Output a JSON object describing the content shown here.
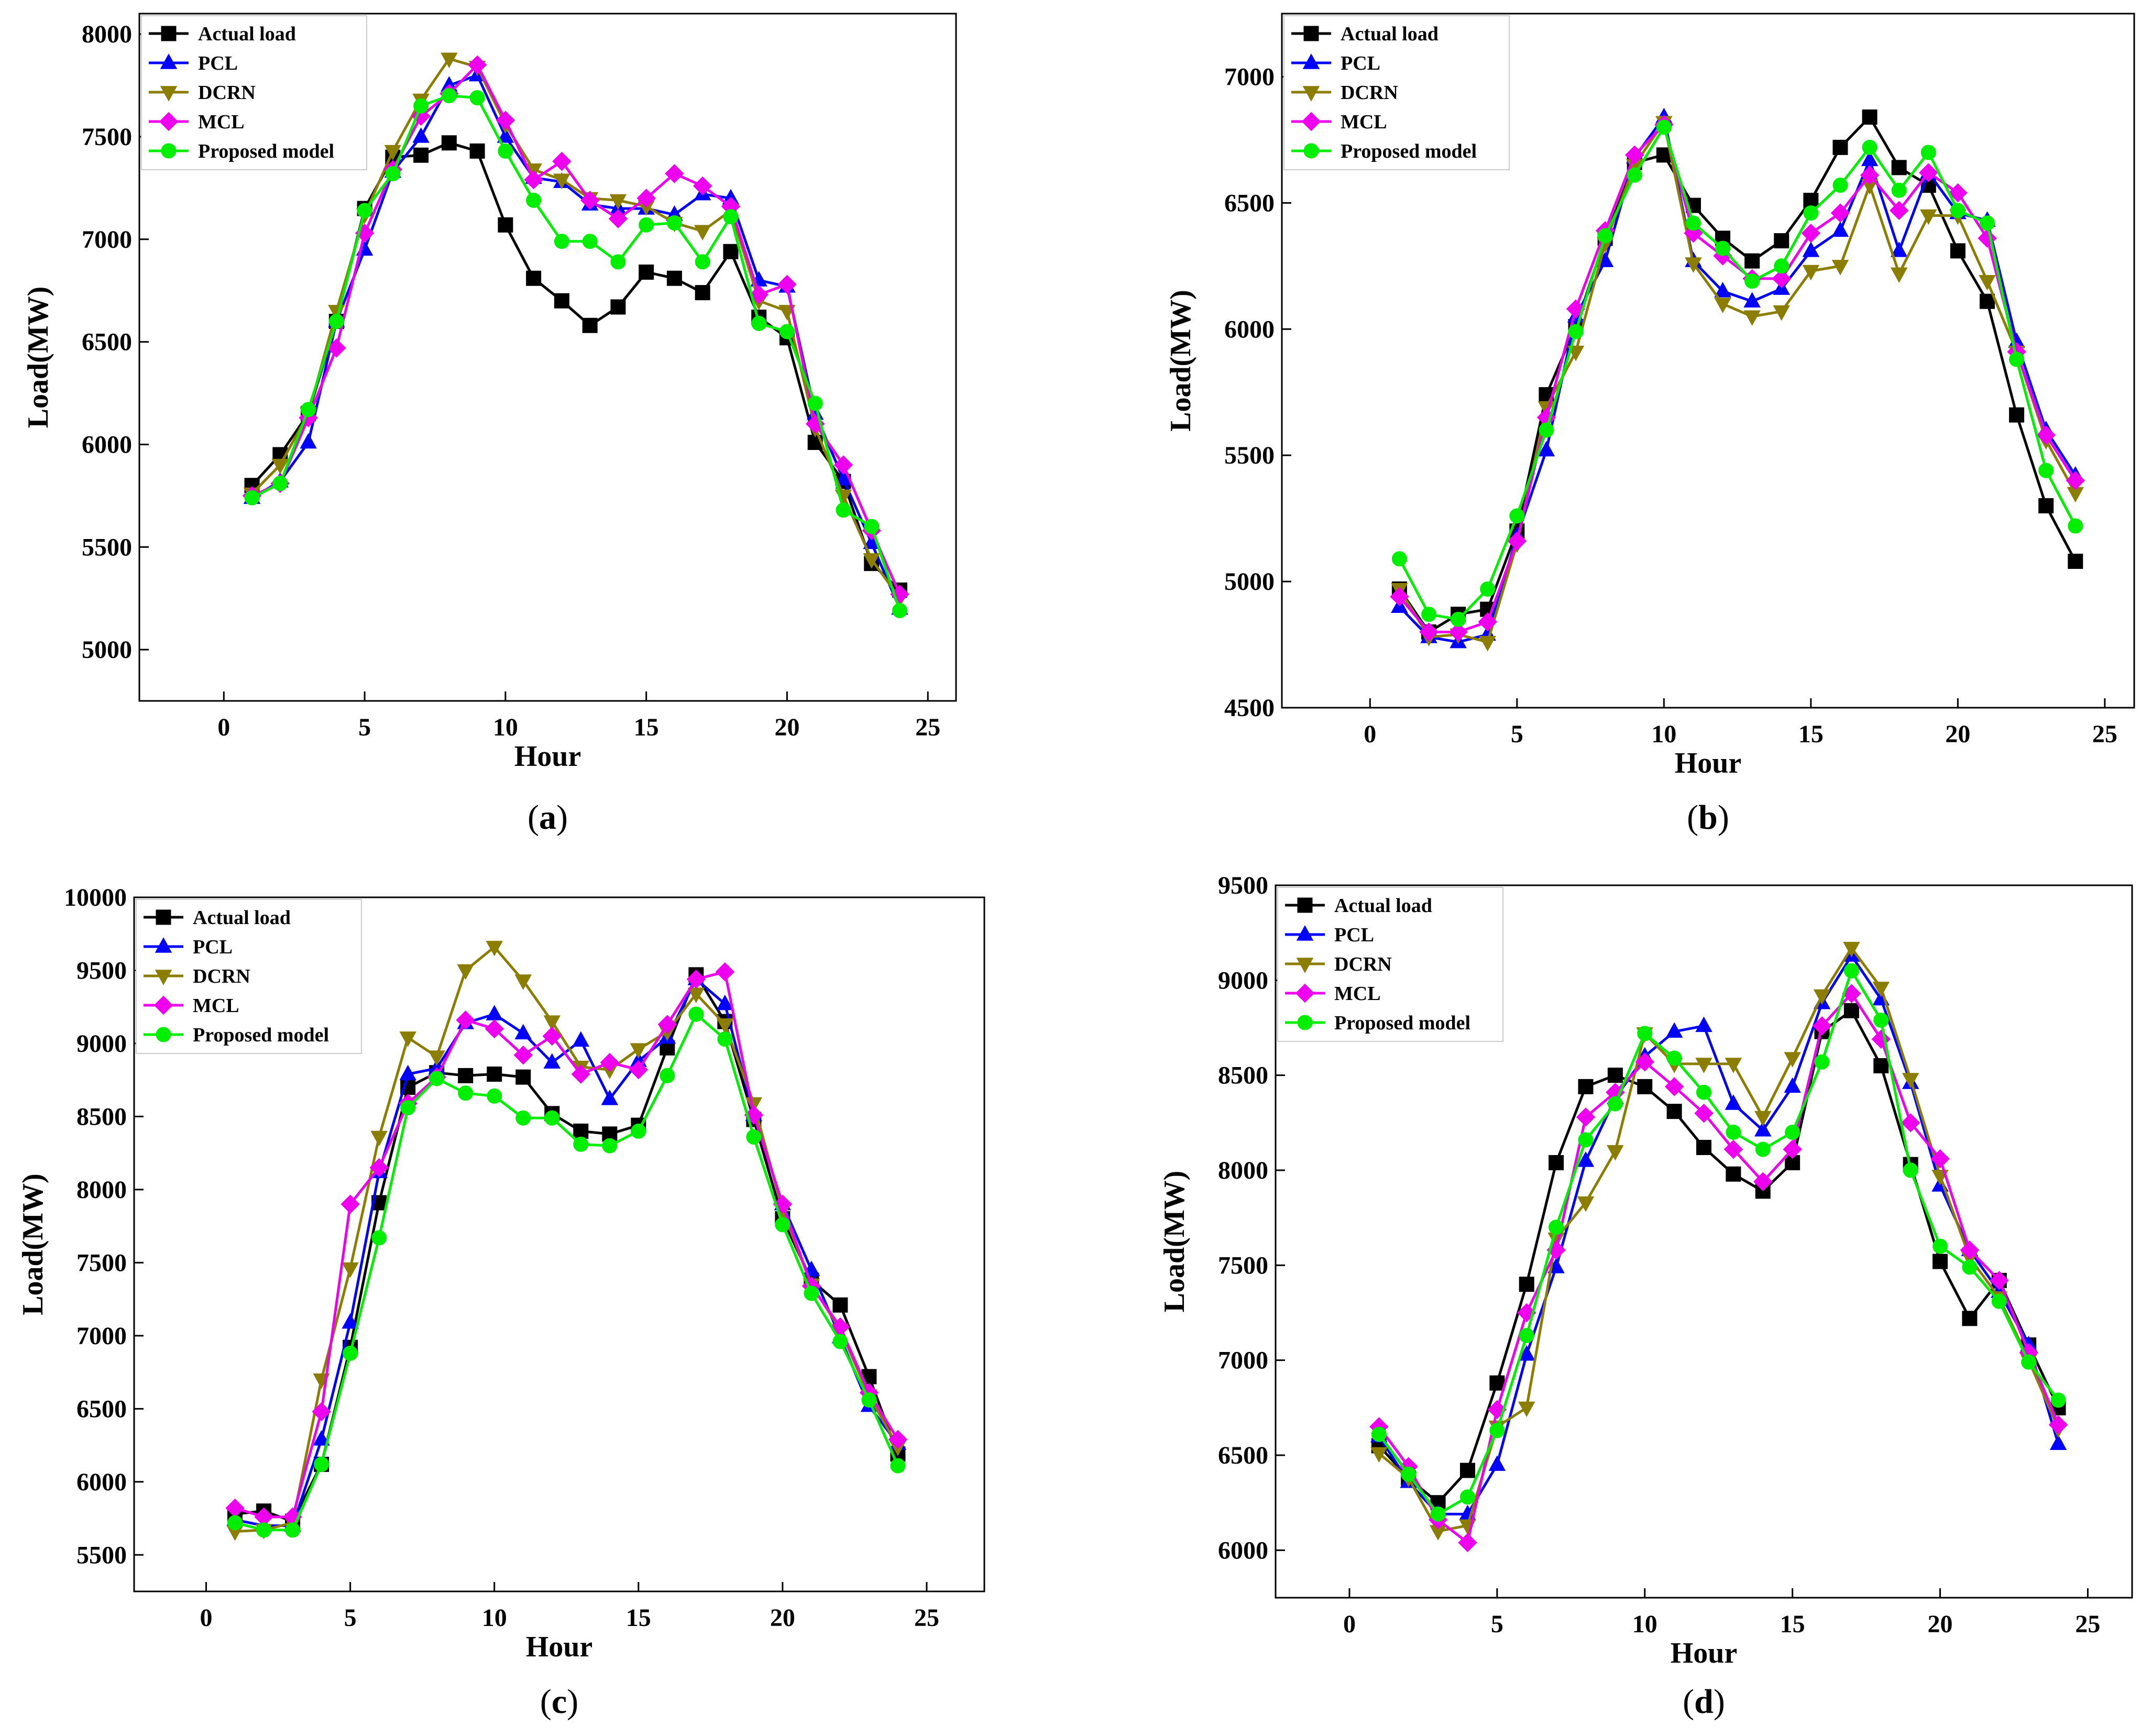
{
  "chart_data": [
    {
      "type": "line",
      "caption": "(a)",
      "caption_letter": "a",
      "xlabel": "Hour",
      "ylabel": "Load(MW)",
      "xlim": [
        -3,
        26
      ],
      "ylim": [
        4750,
        8100
      ],
      "xticks": [
        0,
        5,
        10,
        15,
        20,
        25
      ],
      "yticks": [
        5000,
        5500,
        6000,
        6500,
        7000,
        7500,
        8000
      ],
      "x": [
        1,
        2,
        3,
        4,
        5,
        6,
        7,
        8,
        9,
        10,
        11,
        12,
        13,
        14,
        15,
        16,
        17,
        18,
        19,
        20,
        21,
        22,
        23,
        24
      ],
      "series": [
        {
          "name": "Actual load",
          "marker": "square",
          "color": "#000000",
          "values": [
            5800,
            5950,
            6150,
            6600,
            7150,
            7400,
            7410,
            7470,
            7430,
            7070,
            6810,
            6700,
            6580,
            6670,
            6840,
            6810,
            6740,
            6940,
            6620,
            6520,
            6010,
            5820,
            5420,
            5290
          ]
        },
        {
          "name": "PCL",
          "marker": "triangle-up",
          "color": "#0000ff",
          "values": [
            5740,
            5820,
            6010,
            6600,
            6950,
            7330,
            7500,
            7750,
            7800,
            7500,
            7300,
            7280,
            7170,
            7150,
            7150,
            7120,
            7220,
            7200,
            6800,
            6770,
            6150,
            5830,
            5520,
            5200
          ]
        },
        {
          "name": "DCRN",
          "marker": "triangle-down",
          "color": "#8b7d00",
          "values": [
            5760,
            5900,
            6150,
            6650,
            7120,
            7430,
            7680,
            7880,
            7840,
            7560,
            7340,
            7290,
            7200,
            7190,
            7160,
            7080,
            7040,
            7140,
            6700,
            6650,
            6080,
            5750,
            5440,
            5250
          ]
        },
        {
          "name": "MCL",
          "marker": "diamond",
          "color": "#ee00ee",
          "values": [
            5750,
            5810,
            6130,
            6470,
            7030,
            7340,
            7600,
            7710,
            7850,
            7580,
            7290,
            7380,
            7190,
            7100,
            7200,
            7320,
            7260,
            7160,
            6730,
            6780,
            6100,
            5900,
            5580,
            5270
          ]
        },
        {
          "name": "Proposed model",
          "marker": "circle",
          "color": "#00ee00",
          "values": [
            5740,
            5810,
            6170,
            6600,
            7140,
            7320,
            7650,
            7700,
            7690,
            7430,
            7190,
            6990,
            6990,
            6890,
            7070,
            7080,
            6890,
            7110,
            6590,
            6550,
            6200,
            5680,
            5600,
            5190
          ]
        }
      ]
    },
    {
      "type": "line",
      "caption": "(b)",
      "caption_letter": "b",
      "xlabel": "Hour",
      "ylabel": "Load(MW)",
      "xlim": [
        -3,
        26
      ],
      "ylim": [
        4500,
        7250
      ],
      "xticks": [
        0,
        5,
        10,
        15,
        20,
        25
      ],
      "yticks": [
        4500,
        5000,
        5500,
        6000,
        6500,
        7000
      ],
      "x": [
        1,
        2,
        3,
        4,
        5,
        6,
        7,
        8,
        9,
        10,
        11,
        12,
        13,
        14,
        15,
        16,
        17,
        18,
        19,
        20,
        21,
        22,
        23,
        24
      ],
      "series": [
        {
          "name": "Actual load",
          "marker": "square",
          "color": "#000000",
          "values": [
            4970,
            4800,
            4870,
            4890,
            5200,
            5740,
            6010,
            6360,
            6660,
            6690,
            6490,
            6360,
            6270,
            6350,
            6510,
            6720,
            6840,
            6640,
            6570,
            6310,
            6110,
            5660,
            5300,
            5080
          ]
        },
        {
          "name": "PCL",
          "marker": "triangle-up",
          "color": "#0000ff",
          "values": [
            4900,
            4780,
            4760,
            4790,
            5180,
            5520,
            6050,
            6270,
            6680,
            6840,
            6270,
            6150,
            6110,
            6160,
            6310,
            6390,
            6670,
            6310,
            6620,
            6460,
            6430,
            5950,
            5600,
            5420
          ]
        },
        {
          "name": "DCRN",
          "marker": "triangle-down",
          "color": "#8b7d00",
          "values": [
            4970,
            4780,
            4790,
            4760,
            5150,
            5690,
            5910,
            6340,
            6650,
            6820,
            6260,
            6100,
            6050,
            6070,
            6230,
            6250,
            6570,
            6220,
            6450,
            6450,
            6190,
            5910,
            5560,
            5350
          ]
        },
        {
          "name": "MCL",
          "marker": "diamond",
          "color": "#ee00ee",
          "values": [
            4940,
            4800,
            4800,
            4840,
            5160,
            5650,
            6080,
            6390,
            6690,
            6810,
            6380,
            6290,
            6200,
            6200,
            6380,
            6460,
            6610,
            6470,
            6620,
            6540,
            6360,
            5910,
            5580,
            5400
          ]
        },
        {
          "name": "Proposed model",
          "marker": "circle",
          "color": "#00ee00",
          "values": [
            5090,
            4870,
            4850,
            4970,
            5260,
            5600,
            5990,
            6370,
            6610,
            6800,
            6420,
            6320,
            6190,
            6250,
            6460,
            6570,
            6720,
            6550,
            6700,
            6470,
            6420,
            5880,
            5440,
            5220
          ]
        }
      ]
    },
    {
      "type": "line",
      "caption": "(c)",
      "caption_letter": "c",
      "xlabel": "Hour",
      "ylabel": "Load(MW)",
      "xlim": [
        -2.5,
        27
      ],
      "ylim": [
        5250,
        10000
      ],
      "xticks": [
        0,
        5,
        10,
        15,
        20,
        25
      ],
      "yticks": [
        5500,
        6000,
        6500,
        7000,
        7500,
        8000,
        8500,
        9000,
        9500,
        10000
      ],
      "x": [
        1,
        2,
        3,
        4,
        5,
        6,
        7,
        8,
        9,
        10,
        11,
        12,
        13,
        14,
        15,
        16,
        17,
        18,
        19,
        20,
        21,
        22,
        23,
        24
      ],
      "series": [
        {
          "name": "Actual load",
          "marker": "square",
          "color": "#000000",
          "values": [
            5780,
            5800,
            5730,
            6120,
            6920,
            7910,
            8700,
            8800,
            8780,
            8790,
            8770,
            8520,
            8400,
            8380,
            8440,
            8970,
            9470,
            9150,
            8480,
            7800,
            7380,
            7210,
            6720,
            6190
          ]
        },
        {
          "name": "PCL",
          "marker": "triangle-up",
          "color": "#0000ff",
          "values": [
            5740,
            5700,
            5700,
            6290,
            7090,
            8120,
            8790,
            8830,
            9140,
            9200,
            9070,
            8870,
            9020,
            8620,
            8880,
            9040,
            9440,
            9270,
            8510,
            7900,
            7450,
            6990,
            6520,
            6260
          ]
        },
        {
          "name": "DCRN",
          "marker": "triangle-down",
          "color": "#8b7d00",
          "values": [
            5660,
            5670,
            5720,
            6700,
            7460,
            8360,
            9040,
            8910,
            9500,
            9660,
            9430,
            9150,
            8840,
            8820,
            8960,
            9080,
            9340,
            9130,
            8590,
            7860,
            7350,
            7040,
            6590,
            6240
          ]
        },
        {
          "name": "MCL",
          "marker": "diamond",
          "color": "#ee00ee",
          "values": [
            5820,
            5760,
            5760,
            6480,
            7900,
            8150,
            8590,
            8770,
            9160,
            9100,
            8920,
            9050,
            8790,
            8870,
            8820,
            9130,
            9440,
            9490,
            8510,
            7900,
            7340,
            7060,
            6610,
            6290
          ]
        },
        {
          "name": "Proposed model",
          "marker": "circle",
          "color": "#00ee00",
          "values": [
            5720,
            5670,
            5670,
            6120,
            6880,
            7670,
            8560,
            8760,
            8660,
            8640,
            8490,
            8490,
            8310,
            8300,
            8400,
            8780,
            9200,
            9030,
            8360,
            7760,
            7290,
            6960,
            6560,
            6110
          ]
        }
      ]
    },
    {
      "type": "line",
      "caption": "(d)",
      "caption_letter": "d",
      "xlabel": "Hour",
      "ylabel": "Load(MW)",
      "xlim": [
        -2.5,
        26.5
      ],
      "ylim": [
        5750,
        9500
      ],
      "xticks": [
        0,
        5,
        10,
        15,
        20,
        25
      ],
      "yticks": [
        6000,
        6500,
        7000,
        7500,
        8000,
        8500,
        9000,
        9500
      ],
      "x": [
        1,
        2,
        3,
        4,
        5,
        6,
        7,
        8,
        9,
        10,
        11,
        12,
        13,
        14,
        15,
        16,
        17,
        18,
        19,
        20,
        21,
        22,
        23,
        24
      ],
      "series": [
        {
          "name": "Actual load",
          "marker": "square",
          "color": "#000000",
          "values": [
            6550,
            6380,
            6250,
            6420,
            6880,
            7400,
            8040,
            8440,
            8500,
            8440,
            8310,
            8120,
            7980,
            7890,
            8040,
            8730,
            8840,
            8550,
            8030,
            7520,
            7220,
            7420,
            7080,
            6750
          ]
        },
        {
          "name": "PCL",
          "marker": "triangle-up",
          "color": "#0000ff",
          "values": [
            6600,
            6360,
            6190,
            6190,
            6450,
            7030,
            7490,
            8050,
            8380,
            8600,
            8730,
            8760,
            8350,
            8210,
            8440,
            8880,
            9130,
            8900,
            8460,
            7920,
            7580,
            7360,
            7080,
            6560
          ]
        },
        {
          "name": "DCRN",
          "marker": "triangle-down",
          "color": "#8b7d00",
          "values": [
            6510,
            6380,
            6100,
            6130,
            6650,
            6750,
            7640,
            7830,
            8100,
            8720,
            8560,
            8560,
            8560,
            8280,
            8590,
            8920,
            9170,
            8960,
            8480,
            7970,
            7540,
            7330,
            7000,
            6640
          ]
        },
        {
          "name": "MCL",
          "marker": "diamond",
          "color": "#ee00ee",
          "values": [
            6650,
            6440,
            6160,
            6040,
            6740,
            7250,
            7580,
            8280,
            8410,
            8570,
            8440,
            8300,
            8110,
            7940,
            8110,
            8760,
            8930,
            8690,
            8250,
            8060,
            7580,
            7420,
            7040,
            6660
          ]
        },
        {
          "name": "Proposed model",
          "marker": "circle",
          "color": "#00ee00",
          "values": [
            6610,
            6400,
            6190,
            6280,
            6630,
            7130,
            7700,
            8160,
            8350,
            8720,
            8590,
            8410,
            8200,
            8110,
            8200,
            8570,
            9050,
            8790,
            8000,
            7600,
            7490,
            7310,
            6990,
            6790
          ]
        }
      ]
    }
  ]
}
